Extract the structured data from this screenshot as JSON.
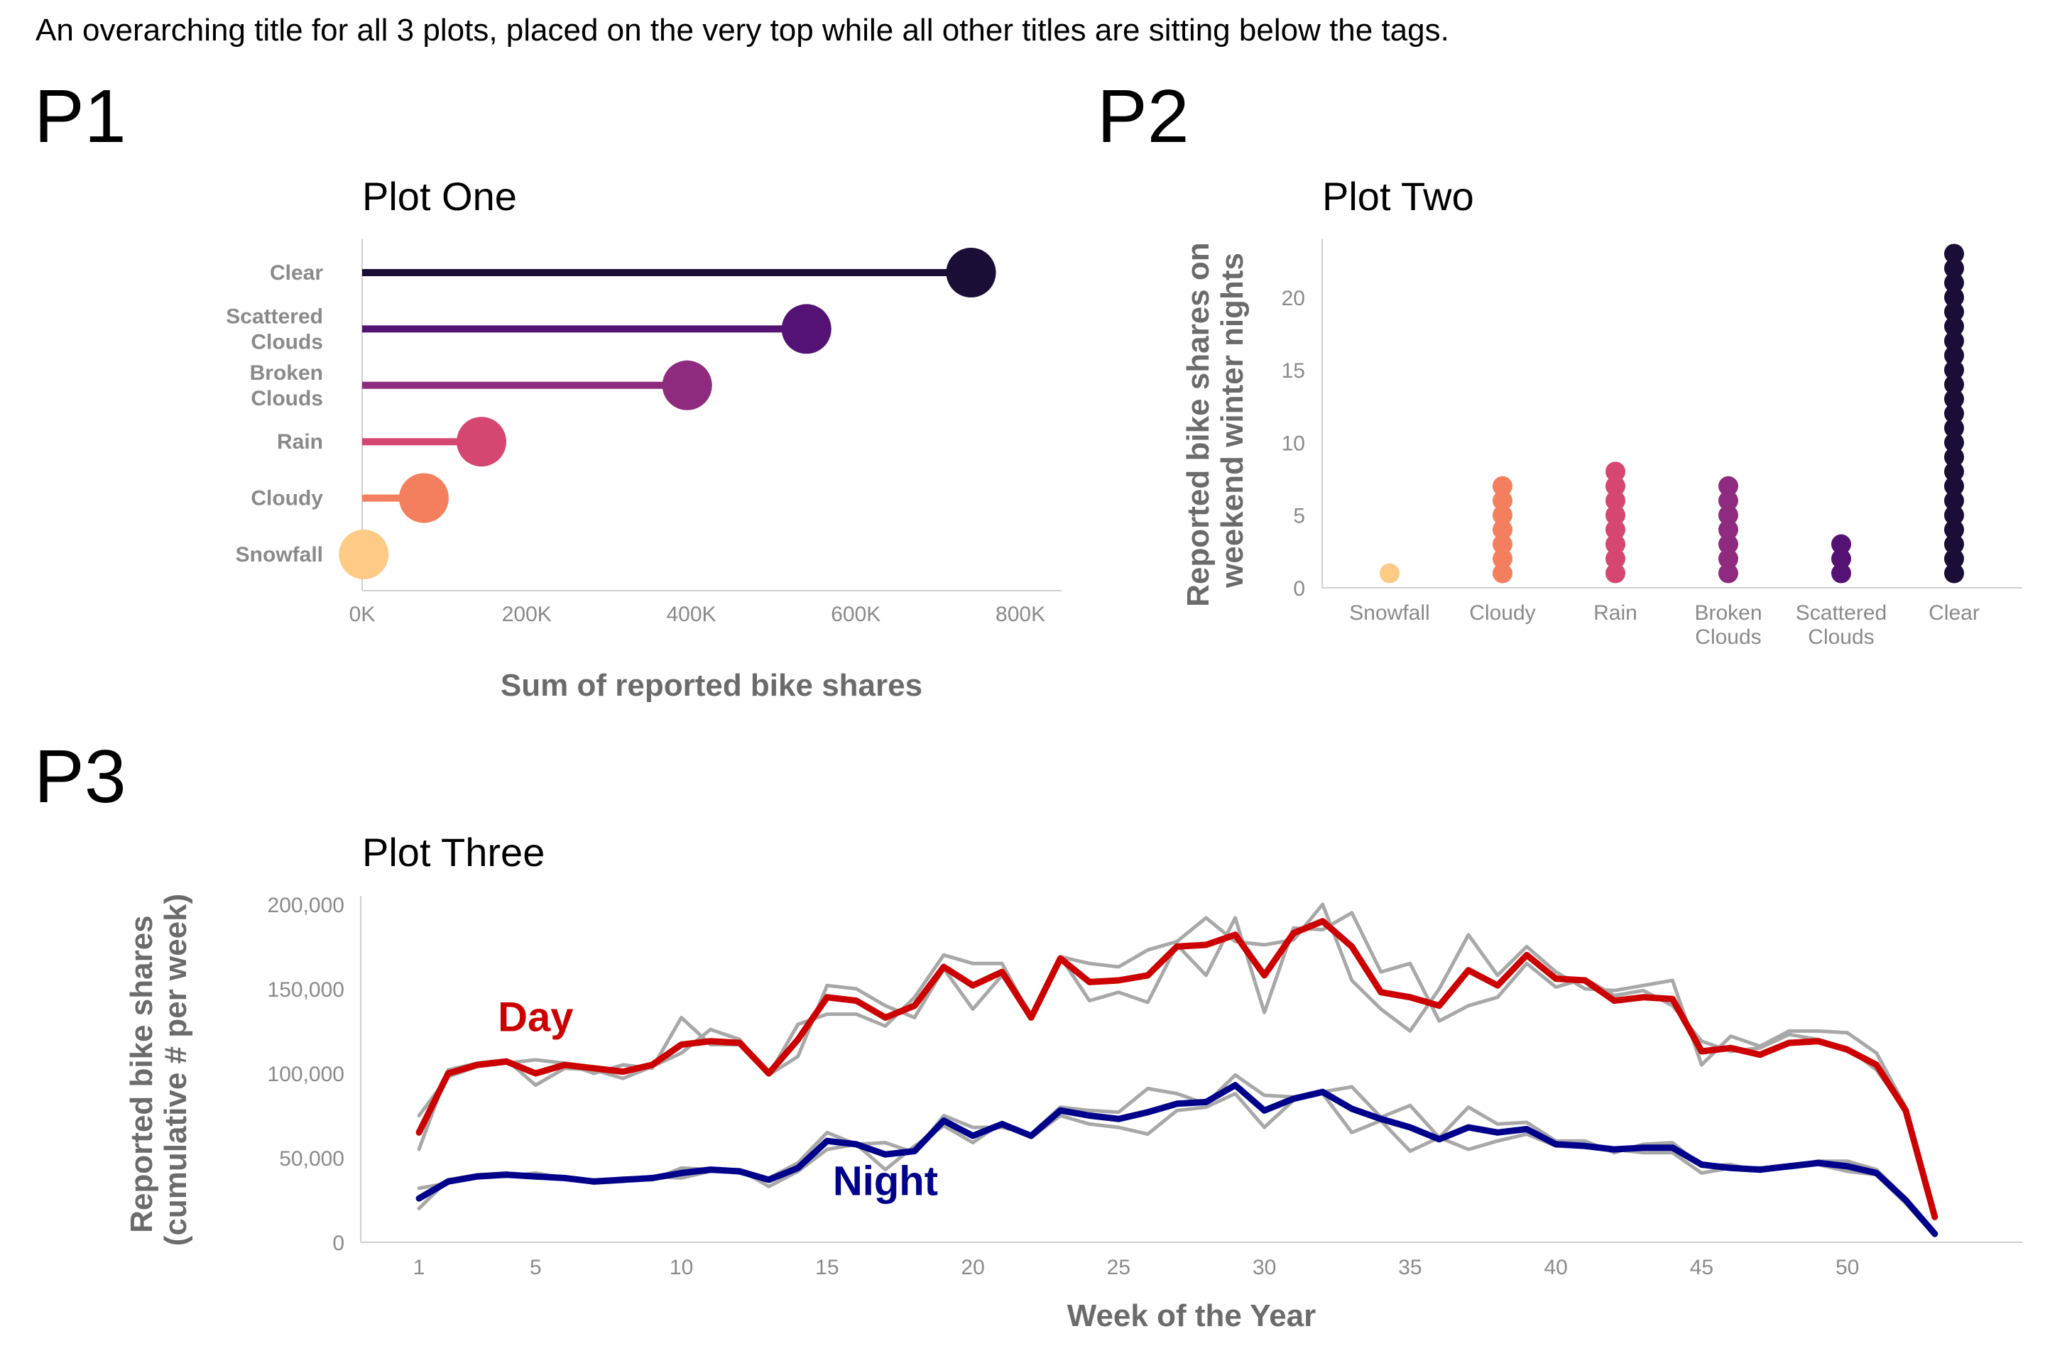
{
  "overarching_title": "An overarching title for all 3 plots, placed on the very top while all other titles are sitting below the tags.",
  "tags": [
    "P1",
    "P2",
    "P3"
  ],
  "colors": {
    "snowfall": "#FDCB85",
    "cloudy": "#F47F5E",
    "rain": "#D54771",
    "broken_clouds": "#8E2B7E",
    "scattered_clouds": "#541275",
    "clear": "#1A0E36",
    "day": "#CC0000",
    "night": "#00008B",
    "raw_lines": "#A8A8A8"
  },
  "chart_data": [
    {
      "type": "bar",
      "subtype": "lollipop",
      "title": "Plot One",
      "xlabel": "Sum of reported bike shares",
      "ylabel": "",
      "categories": [
        "Clear",
        "Scattered\nClouds",
        "Broken\nClouds",
        "Rain",
        "Cloudy",
        "Snowfall"
      ],
      "values": [
        740000,
        540000,
        395000,
        145000,
        75000,
        2000
      ],
      "xlim": [
        0,
        850000
      ],
      "xticks": [
        0,
        200000,
        400000,
        600000,
        800000
      ],
      "xtick_labels": [
        "0K",
        "200K",
        "400K",
        "600K",
        "800K"
      ],
      "color_keys": [
        "clear",
        "scattered_clouds",
        "broken_clouds",
        "rain",
        "cloudy",
        "snowfall"
      ]
    },
    {
      "type": "scatter",
      "subtype": "stacked dots",
      "title": "Plot Two",
      "xlabel": "",
      "ylabel": "Reported bike shares on\nweekend winter nights",
      "categories": [
        "Snowfall",
        "Cloudy",
        "Rain",
        "Broken\nClouds",
        "Scattered\nClouds",
        "Clear"
      ],
      "values": [
        1,
        7,
        8,
        7,
        3,
        23
      ],
      "ylim": [
        0,
        24
      ],
      "yticks": [
        0,
        5,
        10,
        15,
        20
      ],
      "ytick_labels": [
        "0",
        "5",
        "10",
        "15",
        "20"
      ],
      "color_keys": [
        "snowfall",
        "cloudy",
        "rain",
        "broken_clouds",
        "scattered_clouds",
        "clear"
      ]
    },
    {
      "type": "line",
      "title": "Plot Three",
      "xlabel": "Week of the Year",
      "ylabel": "Reported bike shares\n(cumulative # per week)",
      "xlim": [
        -1,
        56
      ],
      "ylim": [
        0,
        205000
      ],
      "xticks": [
        1,
        5,
        10,
        15,
        20,
        25,
        30,
        35,
        40,
        45,
        50
      ],
      "xtick_labels": [
        "1",
        "5",
        "10",
        "15",
        "20",
        "25",
        "30",
        "35",
        "40",
        "45",
        "50"
      ],
      "yticks": [
        0,
        50000,
        100000,
        150000,
        200000
      ],
      "ytick_labels": [
        "0",
        "50,000",
        "100,000",
        "150,000",
        "200,000"
      ],
      "annotations": [
        {
          "text": "Day",
          "x": 5,
          "y": 125000,
          "color_key": "day"
        },
        {
          "text": "Night",
          "x": 17,
          "y": 28000,
          "color_key": "night"
        }
      ],
      "x": [
        1,
        2,
        3,
        4,
        5,
        6,
        7,
        8,
        9,
        10,
        11,
        12,
        13,
        14,
        15,
        16,
        17,
        18,
        19,
        20,
        21,
        22,
        23,
        24,
        25,
        26,
        27,
        28,
        29,
        30,
        31,
        32,
        33,
        34,
        35,
        36,
        37,
        38,
        39,
        40,
        41,
        42,
        43,
        44,
        45,
        46,
        47,
        48,
        49,
        50,
        51,
        52,
        53
      ],
      "series": [
        {
          "name": "Day",
          "color_key": "day",
          "width": "thick",
          "values": [
            65000,
            100000,
            105000,
            107000,
            100000,
            105000,
            103000,
            101000,
            105000,
            117000,
            119000,
            118000,
            100000,
            120000,
            145000,
            143000,
            133000,
            140000,
            163000,
            152000,
            160000,
            133000,
            168000,
            154000,
            155000,
            158000,
            175000,
            176000,
            182000,
            158000,
            183000,
            190000,
            175000,
            148000,
            145000,
            140000,
            161000,
            152000,
            170000,
            156000,
            155000,
            143000,
            145000,
            144000,
            113000,
            115000,
            111000,
            118000,
            119000,
            114000,
            105000,
            78000,
            15000
          ]
        },
        {
          "name": "Night",
          "color_key": "night",
          "width": "thick",
          "values": [
            26000,
            36000,
            39000,
            40000,
            39000,
            38000,
            36000,
            37000,
            38000,
            41000,
            43000,
            42000,
            37000,
            44000,
            60000,
            58000,
            52000,
            54000,
            72000,
            63000,
            70000,
            63000,
            78000,
            75000,
            73000,
            77000,
            82000,
            83000,
            93000,
            78000,
            85000,
            89000,
            79000,
            73000,
            68000,
            61000,
            68000,
            65000,
            67000,
            58000,
            57000,
            55000,
            56000,
            56000,
            46000,
            44000,
            43000,
            45000,
            47000,
            45000,
            41000,
            25000,
            5000
          ]
        },
        {
          "name": "",
          "color_key": "raw_lines",
          "width": "thin",
          "values": [
            55000,
            102000,
            106000,
            108000,
            93000,
            103000,
            102000,
            97000,
            104000,
            112000,
            126000,
            120000,
            99000,
            129000,
            135000,
            135000,
            128000,
            145000,
            170000,
            165000,
            165000,
            133000,
            169000,
            165000,
            163000,
            173000,
            178000,
            192000,
            178000,
            176000,
            179000,
            200000,
            155000,
            138000,
            125000,
            150000,
            182000,
            158000,
            175000,
            160000,
            150000,
            149000,
            152000,
            155000,
            105000,
            122000,
            116000,
            125000,
            125000,
            124000,
            112000,
            80000,
            15000
          ]
        },
        {
          "name": "",
          "color_key": "raw_lines",
          "width": "thin",
          "values": [
            75000,
            98000,
            104000,
            106000,
            108000,
            106000,
            100000,
            105000,
            103000,
            133000,
            117000,
            117000,
            99000,
            110000,
            152000,
            150000,
            140000,
            133000,
            162000,
            138000,
            158000,
            133000,
            169000,
            143000,
            148000,
            142000,
            176000,
            158000,
            192000,
            136000,
            186000,
            185000,
            195000,
            160000,
            165000,
            131000,
            140000,
            145000,
            165000,
            151000,
            156000,
            146000,
            149000,
            140000,
            119000,
            113000,
            115000,
            123000,
            120000,
            115000,
            102000,
            78000,
            14000
          ]
        },
        {
          "name": "",
          "color_key": "raw_lines",
          "width": "thin",
          "values": [
            20000,
            37000,
            40000,
            39000,
            41000,
            38000,
            36000,
            38000,
            37000,
            44000,
            43000,
            41000,
            38000,
            47000,
            65000,
            58000,
            59000,
            53000,
            75000,
            68000,
            68000,
            64000,
            80000,
            78000,
            77000,
            91000,
            88000,
            82000,
            99000,
            87000,
            86000,
            89000,
            92000,
            74000,
            81000,
            62000,
            80000,
            70000,
            71000,
            60000,
            60000,
            53000,
            58000,
            59000,
            45000,
            46000,
            42000,
            45000,
            48000,
            48000,
            43000,
            26000,
            5000
          ]
        },
        {
          "name": "",
          "color_key": "raw_lines",
          "width": "thin",
          "values": [
            32000,
            35000,
            40000,
            41000,
            38000,
            38000,
            35000,
            36000,
            39000,
            38000,
            42000,
            43000,
            33000,
            42000,
            55000,
            58000,
            43000,
            57000,
            69000,
            59000,
            71000,
            62000,
            75000,
            70000,
            68000,
            64000,
            78000,
            80000,
            88000,
            68000,
            84000,
            88000,
            65000,
            72000,
            54000,
            62000,
            55000,
            60000,
            64000,
            57000,
            58000,
            55000,
            53000,
            53000,
            41000,
            44000,
            44000,
            44000,
            46000,
            42000,
            40000,
            23000,
            4000
          ]
        }
      ]
    }
  ]
}
